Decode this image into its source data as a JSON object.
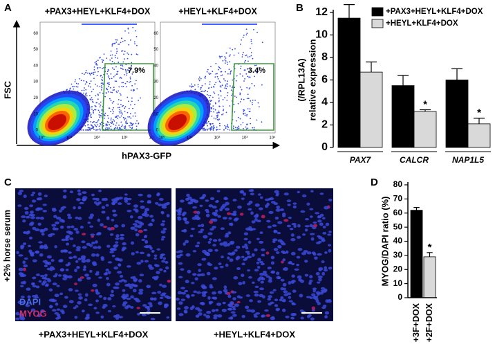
{
  "panel_a": {
    "label": "A",
    "plots": [
      {
        "title": "+PAX3+HEYL+KLF4+DOX",
        "gate": "7.9%"
      },
      {
        "title": "+HEYL+KLF4+DOX",
        "gate": "3.4%"
      }
    ],
    "y_axis": "FSC",
    "x_axis": "hPAX3-GFP",
    "plot_yticks": [
      "0",
      "10",
      "20",
      "30",
      "40",
      "50",
      "60"
    ],
    "plot_xticks": [
      "10⁰",
      "10¹",
      "10²",
      "10³",
      "10⁴"
    ]
  },
  "panel_c": {
    "label": "C",
    "condition": "+2% horse serum",
    "stains": [
      "DAPI",
      "MYOG"
    ],
    "captions": [
      "+PAX3+HEYL+KLF4+DOX",
      "+HEYL+KLF4+DOX"
    ]
  },
  "chart_data": [
    {
      "type": "bar",
      "panel": "B",
      "ylabel": [
        "relative expression",
        "(/RPL13A)"
      ],
      "categories": [
        "PAX7",
        "CALCR",
        "NAP1L5"
      ],
      "series": [
        {
          "name": "+PAX3+HEYL+KLF4+DOX",
          "color": "#000000",
          "values": [
            11.5,
            5.5,
            6.0
          ],
          "errors": [
            1.2,
            0.9,
            1.0
          ],
          "markers": [
            null,
            null,
            null
          ]
        },
        {
          "name": "+HEYL+KLF4+DOX",
          "color": "#d9d9d9",
          "values": [
            6.7,
            3.2,
            2.1
          ],
          "errors": [
            0.9,
            0.15,
            0.5
          ],
          "markers": [
            null,
            "*",
            "*"
          ]
        }
      ],
      "legend": "top-right",
      "ylim": [
        0,
        12
      ],
      "yticks": [
        0,
        2,
        4,
        6,
        8,
        10,
        12
      ]
    },
    {
      "type": "bar",
      "panel": "D",
      "ylabel": [
        "MYOG/DAPI ratio (%)"
      ],
      "categories": [
        "+3F+DOX",
        "+2F+DOX"
      ],
      "values": [
        62,
        29
      ],
      "errors": [
        2,
        3
      ],
      "colors": [
        "#000000",
        "#d9d9d9"
      ],
      "markers": [
        null,
        "*"
      ],
      "ylim": [
        0,
        80
      ],
      "yticks": [
        0,
        10,
        20,
        30,
        40,
        50,
        60,
        70,
        80
      ]
    }
  ]
}
